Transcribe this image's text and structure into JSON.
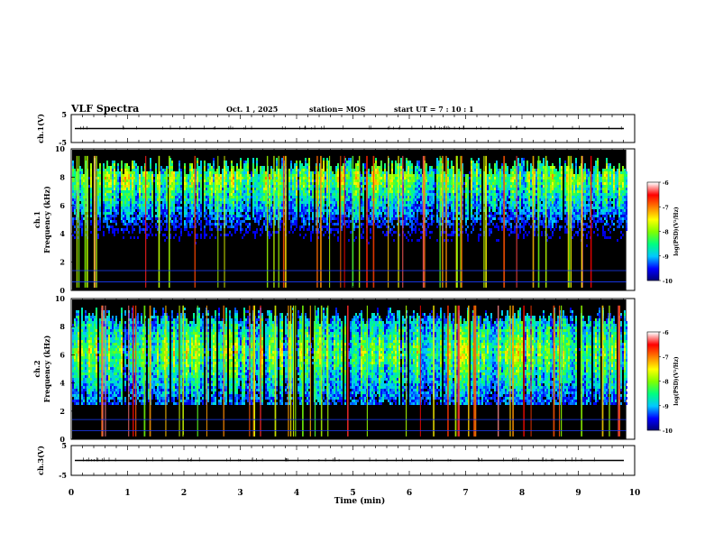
{
  "header": {
    "title": "VLF Spectra",
    "date": "Oct. 1 , 2025",
    "station": "station= MOS",
    "start": "start  UT  =   7 : 10 : 1"
  },
  "chart_data": [
    {
      "type": "line",
      "panel": "ch1-waveform",
      "ylabel": "ch.1(V)",
      "ylim": [
        -5,
        5
      ],
      "yticks": [
        "5",
        "-5"
      ],
      "xlim": [
        0,
        10
      ],
      "baseline_value": 0
    },
    {
      "type": "heatmap",
      "panel": "ch1-spectrogram",
      "ylabel": "ch.1\nFrequency (kHz)",
      "ylim": [
        0,
        10
      ],
      "yticks": [
        "0",
        "2",
        "4",
        "6",
        "8",
        "10"
      ],
      "xlim": [
        0,
        9.85
      ],
      "colorbar": {
        "label": "log(PSD)(V²/Hz)",
        "range": [
          -10,
          -6
        ],
        "ticks": [
          "-6",
          "-7",
          "-8",
          "-9",
          "-10"
        ]
      },
      "band_kHz": [
        0.5,
        9.5
      ],
      "peak_band_kHz": [
        7,
        9
      ]
    },
    {
      "type": "heatmap",
      "panel": "ch2-spectrogram",
      "ylabel": "ch.2\nFrequency (kHz)",
      "ylim": [
        0,
        10
      ],
      "yticks": [
        "0",
        "2",
        "4",
        "6",
        "8",
        "10"
      ],
      "xlim": [
        0,
        9.85
      ],
      "colorbar": {
        "label": "log(PSD)(V²/Hz)",
        "range": [
          -10,
          -6
        ],
        "ticks": [
          "-6",
          "-7",
          "-8",
          "-9",
          "-10"
        ]
      },
      "band_kHz": [
        1,
        9.5
      ],
      "peak_band_kHz": [
        4.5,
        8
      ]
    },
    {
      "type": "line",
      "panel": "ch3-waveform",
      "ylabel": "ch.3(V)",
      "ylim": [
        -5,
        5
      ],
      "yticks": [
        "5",
        "-5"
      ],
      "xlim": [
        0,
        10
      ],
      "baseline_value": 0
    }
  ],
  "xaxis": {
    "label": "Time  (min)",
    "ticks": [
      "0",
      "1",
      "2",
      "3",
      "4",
      "5",
      "6",
      "7",
      "8",
      "9",
      "10"
    ]
  },
  "colors": {
    "scale": [
      "#000070",
      "#0000ff",
      "#00c8ff",
      "#00ff80",
      "#80ff00",
      "#ffff00",
      "#ff8000",
      "#ff0000",
      "#ffffff"
    ],
    "background": "#000000"
  }
}
